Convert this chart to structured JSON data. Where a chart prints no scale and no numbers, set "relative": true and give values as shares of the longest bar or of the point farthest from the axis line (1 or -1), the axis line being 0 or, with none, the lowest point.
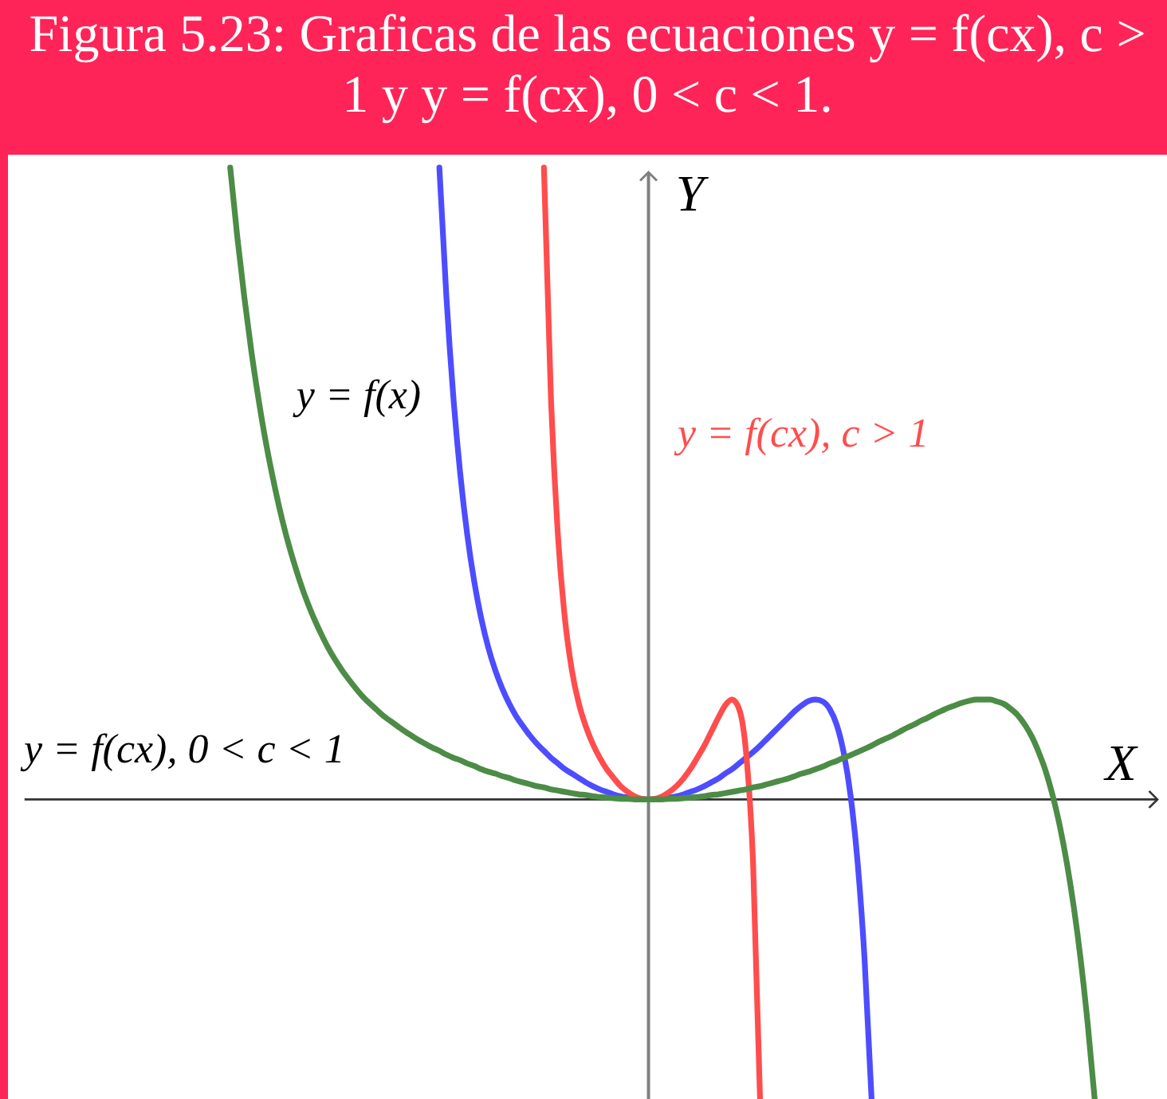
{
  "chart_data": {
    "type": "line",
    "relative": true,
    "title": "Figura 5.23: Graficas de las ecuaciones y = f(cx), c > 1 y y = f(cx), 0 < c < 1.",
    "xlabel": "X",
    "ylabel": "Y",
    "categories": [
      null,
      null,
      null,
      null,
      null,
      null,
      null,
      null,
      null,
      null,
      null,
      null,
      null,
      null,
      null,
      null,
      null,
      null,
      null,
      null,
      null,
      null,
      null,
      null,
      null,
      null,
      null,
      null,
      null,
      null,
      null,
      null,
      null,
      null,
      null,
      null,
      null,
      null,
      null,
      null,
      null,
      null,
      null,
      null,
      null,
      null,
      null,
      null,
      null,
      null,
      null,
      null,
      null,
      null,
      null,
      null,
      null,
      null,
      null,
      null,
      null,
      null,
      null,
      null,
      null,
      null,
      null,
      null,
      null,
      null,
      null,
      null,
      null,
      null,
      null,
      null,
      null,
      null,
      null,
      null,
      null,
      null,
      null,
      null,
      null,
      null,
      null,
      null,
      null,
      null,
      null,
      null,
      null,
      null,
      null,
      null,
      null,
      null,
      null,
      null,
      null,
      null,
      null,
      null,
      null,
      null,
      null,
      null,
      null,
      null,
      null,
      null,
      null,
      null,
      null,
      null,
      null,
      null,
      null,
      null,
      null,
      null,
      null,
      null,
      null,
      null,
      null,
      null,
      null,
      null,
      null,
      null,
      null,
      null,
      null,
      null,
      null,
      null,
      null,
      null,
      null,
      null,
      null,
      null,
      null,
      null,
      null,
      null,
      null,
      null,
      null,
      null,
      null,
      null,
      null,
      null,
      null,
      null,
      null,
      null,
      null,
      null
    ],
    "series": [
      {
        "name": "y = f(x)",
        "color": "#4d4dff",
        "values": [
          null,
          null,
          null,
          null,
          null,
          null,
          null,
          null,
          null,
          null,
          null,
          null,
          null,
          null,
          null,
          null,
          null,
          null,
          null,
          null,
          null,
          null,
          null,
          null,
          null,
          null,
          null,
          null,
          null,
          null,
          null,
          null,
          null,
          null,
          null,
          null,
          null,
          null,
          null,
          null,
          null,
          null,
          null,
          null,
          null,
          null,
          null,
          null,
          null,
          null,
          null,
          null,
          null,
          null,
          null,
          null,
          null,
          null,
          null,
          1,
          0.797,
          0.638,
          0.515,
          0.419,
          0.345,
          0.287,
          0.241,
          0.205,
          0.176,
          0.152,
          0.132,
          0.116,
          0.101,
          0.088,
          0.077,
          0.066,
          0.057,
          0.048,
          0.041,
          0.034,
          0.027,
          0.021,
          0.016,
          0.012,
          0.008,
          0.005,
          0.003,
          0.001,
          0,
          0,
          0,
          0.001,
          0.003,
          0.005,
          0.008,
          0.012,
          0.016,
          0.021,
          0.027,
          0.033,
          0.041,
          0.048,
          0.057,
          0.066,
          0.075,
          0.085,
          0.096,
          0.107,
          0.118,
          0.129,
          0.14,
          0.149,
          0.156,
          0.158,
          0.155,
          0.143,
          0.118,
          0.074,
          0.005,
          -0.1,
          -0.254,
          -0.474,
          null,
          null,
          null,
          null,
          null,
          null,
          null,
          null,
          null,
          null,
          null,
          null,
          null,
          null,
          null,
          null,
          null,
          null,
          null,
          null,
          null,
          null,
          null,
          null,
          null,
          null,
          null,
          null,
          null,
          null,
          null,
          null,
          null,
          null,
          null,
          null,
          null,
          null,
          null,
          null
        ]
      },
      {
        "name": "y = f(cx), c > 1",
        "color": "#ff4d4d",
        "values": [
          null,
          null,
          null,
          null,
          null,
          null,
          null,
          null,
          null,
          null,
          null,
          null,
          null,
          null,
          null,
          null,
          null,
          null,
          null,
          null,
          null,
          null,
          null,
          null,
          null,
          null,
          null,
          null,
          null,
          null,
          null,
          null,
          null,
          null,
          null,
          null,
          null,
          null,
          null,
          null,
          null,
          null,
          null,
          null,
          null,
          null,
          null,
          null,
          null,
          null,
          null,
          null,
          null,
          null,
          null,
          null,
          null,
          null,
          null,
          null,
          null,
          null,
          null,
          null,
          null,
          null,
          null,
          null,
          null,
          null,
          null,
          null,
          null,
          null,
          1,
          0.638,
          0.419,
          0.287,
          0.205,
          0.152,
          0.116,
          0.088,
          0.066,
          0.048,
          0.034,
          0.021,
          0.012,
          0.005,
          0.001,
          0,
          0.001,
          0.005,
          0.012,
          0.021,
          0.033,
          0.048,
          0.066,
          0.085,
          0.107,
          0.129,
          0.149,
          0.158,
          0.143,
          0.074,
          -0.1,
          -0.474,
          null,
          null,
          null,
          null,
          null,
          null,
          null,
          null,
          null,
          null,
          null,
          null,
          null,
          null,
          null,
          null,
          null,
          null,
          null,
          null,
          null,
          null,
          null,
          null,
          null,
          null,
          null,
          null,
          null,
          null,
          null,
          null,
          null,
          null,
          null,
          null,
          null,
          null,
          null,
          null,
          null,
          null,
          null,
          null,
          null,
          null,
          null,
          null,
          null,
          null,
          null,
          null,
          null,
          null,
          null,
          null
        ]
      },
      {
        "name": "y = f(cx), 0 < c < 1",
        "color": "#4c8c46",
        "values": [
          null,
          null,
          null,
          null,
          null,
          null,
          null,
          null,
          null,
          null,
          null,
          null,
          null,
          null,
          null,
          null,
          null,
          null,
          null,
          null,
          null,
          null,
          null,
          null,
          null,
          null,
          null,
          null,
          null,
          1,
          0.892,
          0.797,
          0.712,
          0.638,
          0.572,
          0.515,
          0.464,
          0.419,
          0.38,
          0.345,
          0.314,
          0.287,
          0.263,
          0.241,
          0.222,
          0.205,
          0.19,
          0.176,
          0.163,
          0.152,
          0.142,
          0.132,
          0.124,
          0.116,
          0.108,
          0.101,
          0.094,
          0.088,
          0.082,
          0.077,
          0.071,
          0.066,
          0.062,
          0.057,
          0.053,
          0.048,
          0.044,
          0.041,
          0.037,
          0.034,
          0.03,
          0.027,
          0.024,
          0.021,
          0.019,
          0.016,
          0.014,
          0.012,
          0.01,
          0.008,
          0.007,
          0.005,
          0.004,
          0.003,
          0.002,
          0.001,
          0.001,
          0,
          0,
          0,
          0,
          0,
          0.001,
          0.001,
          0.002,
          0.003,
          0.004,
          0.005,
          0.007,
          0.008,
          0.01,
          0.012,
          0.014,
          0.016,
          0.019,
          0.021,
          0.024,
          0.027,
          0.03,
          0.033,
          0.037,
          0.041,
          0.044,
          0.048,
          0.052,
          0.057,
          0.061,
          0.066,
          0.07,
          0.075,
          0.08,
          0.085,
          0.091,
          0.096,
          0.101,
          0.107,
          0.113,
          0.118,
          0.124,
          0.129,
          0.135,
          0.14,
          0.145,
          0.149,
          0.153,
          0.156,
          0.158,
          0.158,
          0.158,
          0.155,
          0.151,
          0.143,
          0.133,
          0.118,
          0.099,
          0.074,
          0.044,
          0.005,
          -0.042,
          -0.1,
          -0.17,
          -0.254,
          -0.355,
          -0.474,
          null,
          null,
          null,
          null,
          null,
          null,
          null,
          null
        ]
      }
    ]
  }
}
